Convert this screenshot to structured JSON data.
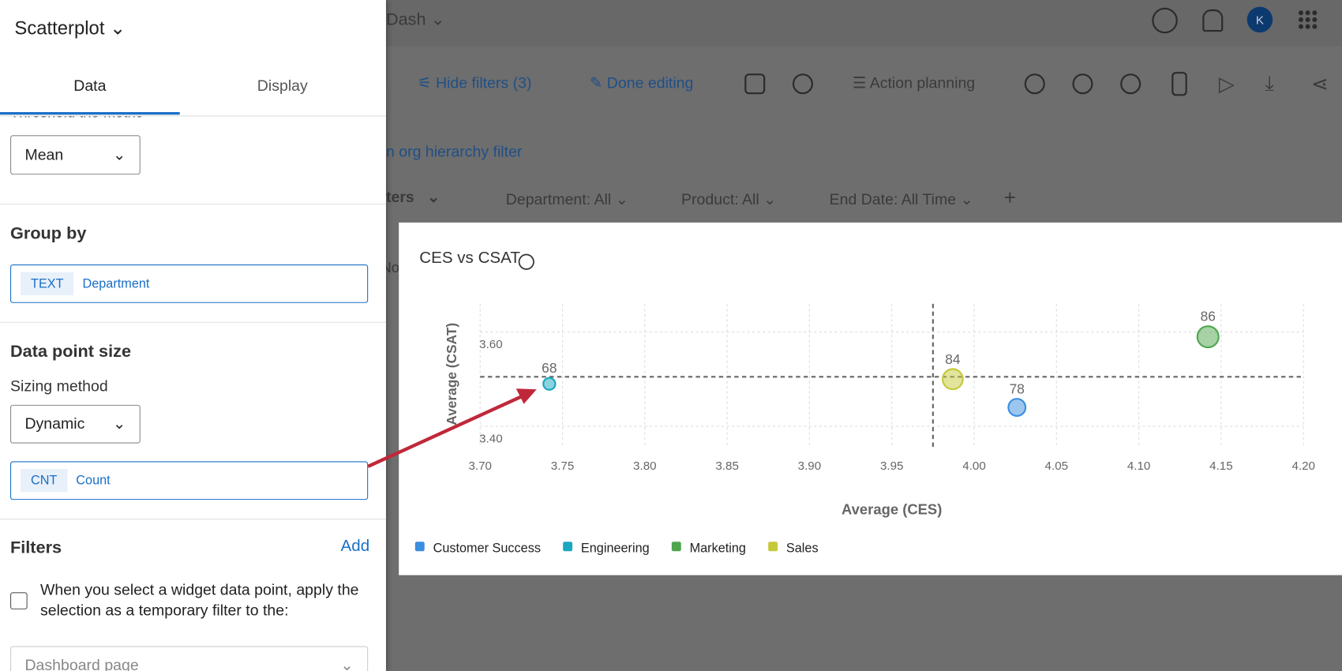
{
  "panel": {
    "title": "Scatterplot",
    "tabs": [
      "Data",
      "Display"
    ],
    "threshold_label": "Threshold the metric",
    "threshold_value": "Mean",
    "group_by": {
      "heading": "Group by",
      "chip": "TEXT",
      "field": "Department"
    },
    "data_point_size": {
      "heading": "Data point size",
      "sizing_label": "Sizing method",
      "sizing_value": "Dynamic",
      "chip": "CNT",
      "field": "Count"
    },
    "filters": {
      "heading": "Filters",
      "add": "Add",
      "checkbox_text": "When you select a widget data point, apply the selection as a temporary filter to the:",
      "target": "Dashboard page"
    }
  },
  "dashboard": {
    "name": "Dash",
    "avatar": "K",
    "toolbar": [
      "Hide filters (3)",
      "Done editing",
      "Action planning"
    ],
    "hierarchy_link": "n org hierarchy filter",
    "filters_label": "ters",
    "filters": [
      "Department: All",
      "Product: All",
      "End Date: All Time"
    ],
    "partial_text": "No"
  },
  "chart_data": {
    "type": "scatter",
    "title": "CES vs CSAT",
    "x_label": "Average (CES)",
    "y_label": "Average (CSAT)",
    "xlim": [
      3.7,
      4.2
    ],
    "ylim": [
      3.36,
      3.66
    ],
    "xticks": [
      {
        "value": 3.7,
        "label": "3.70"
      },
      {
        "value": 3.75,
        "label": "3.75"
      },
      {
        "value": 3.8,
        "label": "3.80"
      },
      {
        "value": 3.85,
        "label": "3.85"
      },
      {
        "value": 3.9,
        "label": "3.90"
      },
      {
        "value": 3.95,
        "label": "3.95"
      },
      {
        "value": 4.0,
        "label": "4.00"
      },
      {
        "value": 4.05,
        "label": "4.05"
      },
      {
        "value": 4.1,
        "label": "4.10"
      },
      {
        "value": 4.15,
        "label": "4.15"
      },
      {
        "value": 4.2,
        "label": "4.20"
      }
    ],
    "yticks": [
      {
        "value": 3.4,
        "label": "3.40"
      },
      {
        "value": 3.6,
        "label": "3.60"
      }
    ],
    "grid": true,
    "reference_lines": {
      "x": 3.975,
      "y": 3.505
    },
    "series": [
      {
        "name": "Customer Success",
        "color": "#3b8ee0",
        "x": [
          4.026
        ],
        "values": [
          3.44
        ],
        "sizes": [
          78
        ]
      },
      {
        "name": "Engineering",
        "color": "#1aa8bf",
        "x": [
          3.742
        ],
        "values": [
          3.49
        ],
        "sizes": [
          68
        ]
      },
      {
        "name": "Marketing",
        "color": "#4ea64e",
        "x": [
          4.142
        ],
        "values": [
          3.59
        ],
        "sizes": [
          86
        ]
      },
      {
        "name": "Sales",
        "color": "#c5c93a",
        "x": [
          3.987
        ],
        "values": [
          3.5
        ],
        "sizes": [
          84
        ]
      }
    ]
  }
}
